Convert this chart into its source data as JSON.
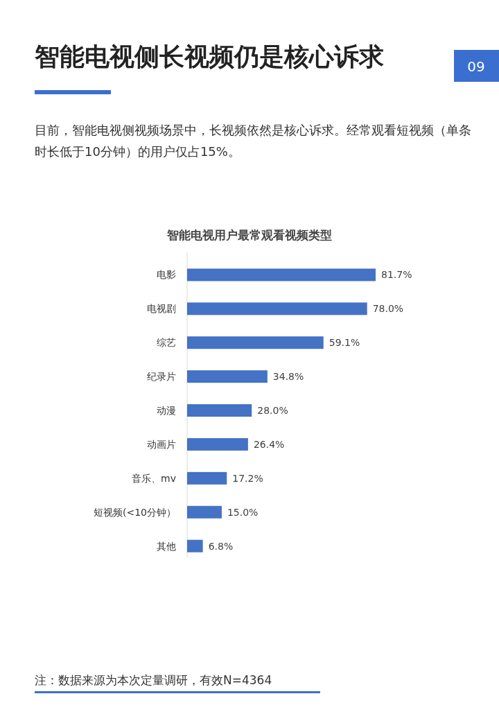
{
  "chart_data": {
    "type": "bar",
    "orientation": "horizontal",
    "title": "智能电视侧长视频仍是核心诉求",
    "subtitle": "目前，智能电视侧视频场景中，长视频依然是核心诉求。经常观看短视频（单条时长低于10分钟）的用户仅占15%。",
    "categories": [
      "电影",
      "电视剧",
      "综艺",
      "纪录片",
      "动漫",
      "动画片",
      "音乐、mv",
      "短视频(<10分钟）",
      "其他"
    ],
    "values": [
      81.7,
      78.0,
      59.1,
      34.8,
      28.0,
      26.4,
      17.2,
      15.0,
      6.8
    ],
    "value_labels": [
      "81.7%",
      "78.0%",
      "59.1%",
      "34.8%",
      "28.0%",
      "26.4%",
      "17.2%",
      "15.0%",
      "6.8%"
    ],
    "color": "#4472c4",
    "annotations": [
      "智能电视用户最常观看视频类型",
      "注：数据来源为本次定量调研，有效N=4364",
      "09"
    ]
  }
}
